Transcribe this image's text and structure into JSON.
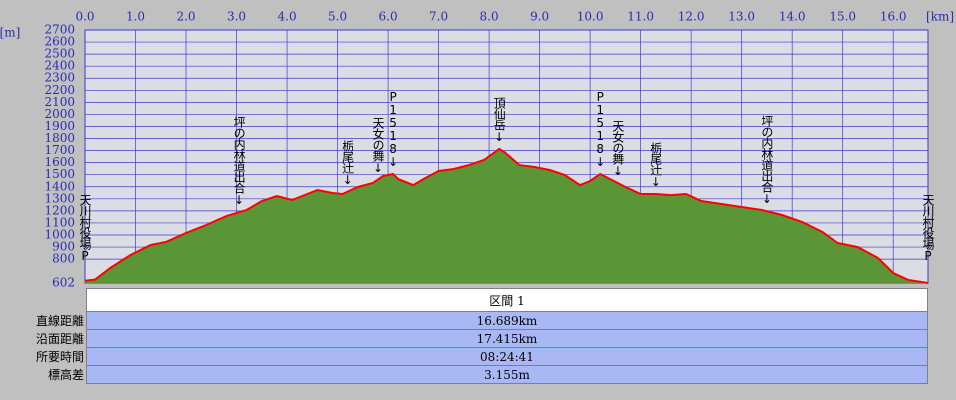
{
  "chart_data": {
    "type": "area",
    "xlabel": "[km]",
    "ylabel": "[m]",
    "x": [
      0,
      0.2,
      0.5,
      0.9,
      1.3,
      1.6,
      2.0,
      2.4,
      2.8,
      3.2,
      3.5,
      3.8,
      4.1,
      4.4,
      4.6,
      4.9,
      5.1,
      5.4,
      5.7,
      5.9,
      6.1,
      6.2,
      6.5,
      6.7,
      7.0,
      7.3,
      7.6,
      7.9,
      8.2,
      8.3,
      8.6,
      8.9,
      9.2,
      9.5,
      9.8,
      10.0,
      10.2,
      10.4,
      10.7,
      11.0,
      11.3,
      11.6,
      11.9,
      12.2,
      12.6,
      13.0,
      13.4,
      13.8,
      14.2,
      14.6,
      14.9,
      15.3,
      15.7,
      16.0,
      16.3,
      16.689
    ],
    "values": [
      620,
      630,
      726,
      834,
      917,
      942,
      1017,
      1083,
      1157,
      1207,
      1282,
      1323,
      1290,
      1340,
      1373,
      1348,
      1340,
      1398,
      1431,
      1489,
      1506,
      1464,
      1414,
      1464,
      1531,
      1547,
      1580,
      1622,
      1713,
      1688,
      1580,
      1564,
      1539,
      1498,
      1414,
      1448,
      1506,
      1464,
      1398,
      1340,
      1340,
      1331,
      1340,
      1282,
      1257,
      1232,
      1207,
      1166,
      1108,
      1025,
      934,
      900,
      809,
      685,
      627,
      602
    ],
    "fill_color": "#5a9636",
    "line_color": "#ff0000",
    "grid_color": "#3c3cc8",
    "xlim": [
      0,
      16.689
    ],
    "ylim": [
      602,
      2700
    ],
    "xticks": [
      {
        "value": 0,
        "label": "0.0"
      },
      {
        "value": 1,
        "label": "1.0"
      },
      {
        "value": 2,
        "label": "2.0"
      },
      {
        "value": 3,
        "label": "3.0"
      },
      {
        "value": 4,
        "label": "4.0"
      },
      {
        "value": 5,
        "label": "5.0"
      },
      {
        "value": 6,
        "label": "6.0"
      },
      {
        "value": 7,
        "label": "7.0"
      },
      {
        "value": 8,
        "label": "8.0"
      },
      {
        "value": 9,
        "label": "9.0"
      },
      {
        "value": 10,
        "label": "10.0"
      },
      {
        "value": 11,
        "label": "11.0"
      },
      {
        "value": 12,
        "label": "12.0"
      },
      {
        "value": 13,
        "label": "13.0"
      },
      {
        "value": 14,
        "label": "14.0"
      },
      {
        "value": 15,
        "label": "15.0"
      },
      {
        "value": 16,
        "label": "16.0"
      }
    ],
    "yticks": [
      602,
      800,
      900,
      1000,
      1100,
      1200,
      1300,
      1400,
      1500,
      1600,
      1700,
      1800,
      1900,
      2000,
      2100,
      2200,
      2300,
      2400,
      2500,
      2600,
      2700
    ],
    "grid": true,
    "annotations": [
      {
        "text": "天川村役場P",
        "x": 0
      },
      {
        "text": "坪の内林道出合↓",
        "x": 3.05
      },
      {
        "text": "栃尾辻↓",
        "x": 5.2
      },
      {
        "text": "天女の舞↓",
        "x": 5.8
      },
      {
        "text": "P1518↓",
        "x": 6.1
      },
      {
        "text": "頂仙岳↓",
        "x": 8.2
      },
      {
        "text": "P1518↓",
        "x": 10.2
      },
      {
        "text": "天女の舞↓",
        "x": 10.55
      },
      {
        "text": "栃尾辻↓",
        "x": 11.3
      },
      {
        "text": "坪の内林道出合↓",
        "x": 13.5
      },
      {
        "text": "天川村役場P",
        "x": 16.689
      }
    ]
  },
  "table": {
    "header": "区間 1",
    "rows": [
      [
        "直線距離",
        "16.689km"
      ],
      [
        "沿面距離",
        "17.415km"
      ],
      [
        "所要時間",
        "08:24:41"
      ],
      [
        "標高差",
        "3.155m"
      ]
    ]
  }
}
